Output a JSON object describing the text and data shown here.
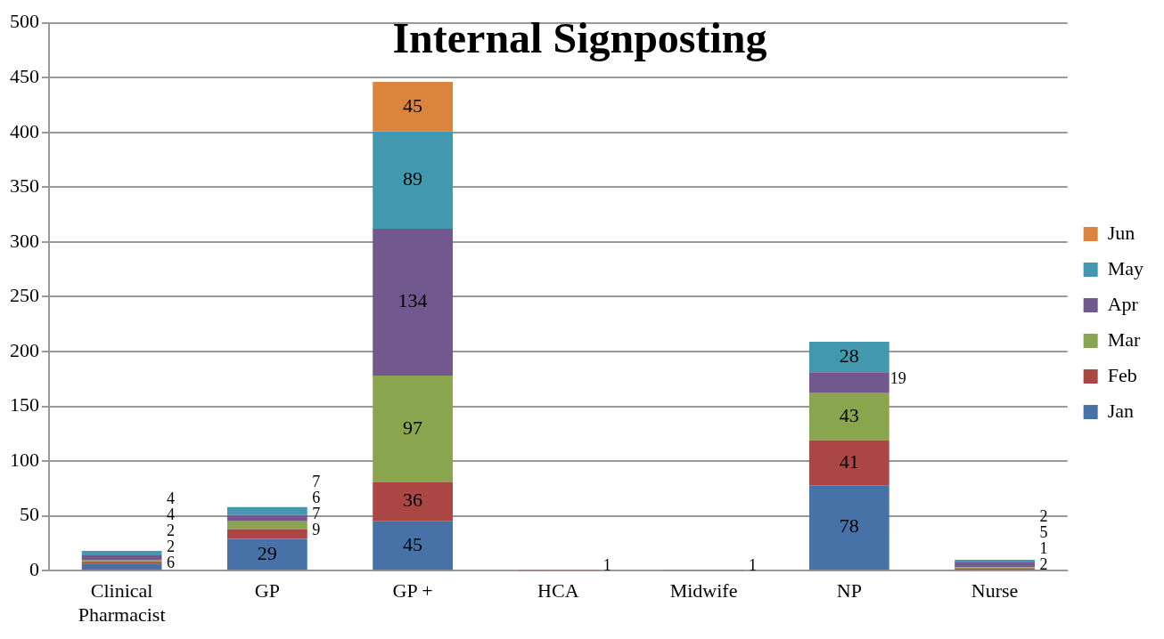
{
  "chart_data": {
    "type": "bar",
    "title": "Internal Signposting",
    "categories": [
      "Clinical\nPharmacist",
      "GP",
      "GP +",
      "HCA",
      "Midwife",
      "NP",
      "Nurse"
    ],
    "stacked": true,
    "ylim": [
      0,
      500
    ],
    "yticks": [
      0,
      50,
      100,
      150,
      200,
      250,
      300,
      350,
      400,
      450,
      500
    ],
    "grid": "y",
    "legend": "right",
    "data_labels": true,
    "series": [
      {
        "name": "Jan",
        "color": "#4672a8",
        "values": [
          6,
          29,
          45,
          null,
          null,
          78,
          null
        ]
      },
      {
        "name": "Feb",
        "color": "#aa4643",
        "values": [
          2,
          9,
          36,
          1,
          null,
          41,
          2
        ]
      },
      {
        "name": "Mar",
        "color": "#89a54e",
        "values": [
          2,
          7,
          97,
          null,
          null,
          43,
          1
        ]
      },
      {
        "name": "Apr",
        "color": "#71588f",
        "values": [
          4,
          6,
          134,
          null,
          1,
          19,
          5
        ]
      },
      {
        "name": "May",
        "color": "#4198af",
        "values": [
          4,
          7,
          89,
          null,
          null,
          28,
          2
        ]
      },
      {
        "name": "Jun",
        "color": "#db843d",
        "values": [
          null,
          null,
          45,
          null,
          null,
          null,
          null
        ]
      }
    ]
  }
}
